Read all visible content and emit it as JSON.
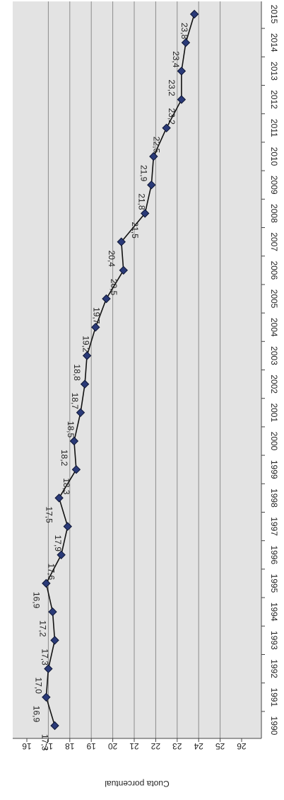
{
  "chart_data": {
    "type": "line",
    "title": "",
    "xlabel": "",
    "ylabel": "Cuota porcentual",
    "x": [
      "1990",
      "1991",
      "1992",
      "1993",
      "1994",
      "1995",
      "1996",
      "1997",
      "1998",
      "1999",
      "2000",
      "2001",
      "2002",
      "2003",
      "2004",
      "2005",
      "2006",
      "2007",
      "2008",
      "2009",
      "2010",
      "2011",
      "2012",
      "2013",
      "2014",
      "2015"
    ],
    "values": [
      17.3,
      16.9,
      17.0,
      17.3,
      17.2,
      16.9,
      17.6,
      17.9,
      17.5,
      18.3,
      18.2,
      18.5,
      18.7,
      18.8,
      19.2,
      19.7,
      20.5,
      20.4,
      21.5,
      21.8,
      21.9,
      22.5,
      23.2,
      23.2,
      23.4,
      23.8
    ],
    "data_labels": [
      "17,3",
      "16,9",
      "17,0",
      "17,3",
      "17,2",
      "16,9",
      "17,6",
      "17,9",
      "17,5",
      "18,3",
      "18,2",
      "18,5",
      "18,7",
      "18,8",
      "19,2",
      "19,7",
      "20,5",
      "20,4",
      "21,5",
      "21,8",
      "21,9",
      "22,5",
      "23,2",
      "23,2",
      "23,4",
      "23,8"
    ],
    "ylim": [
      16,
      26
    ],
    "yticks": [
      "16",
      "17",
      "18",
      "19",
      "20",
      "21",
      "22",
      "23",
      "24",
      "25",
      "26"
    ],
    "grid": true,
    "orientation": "rotated-90-clockwise",
    "colors": {
      "plot_background": "#e3e3e3",
      "gridline": "#8c8c8c",
      "line": "#111111",
      "marker": "#2a3a78"
    }
  }
}
